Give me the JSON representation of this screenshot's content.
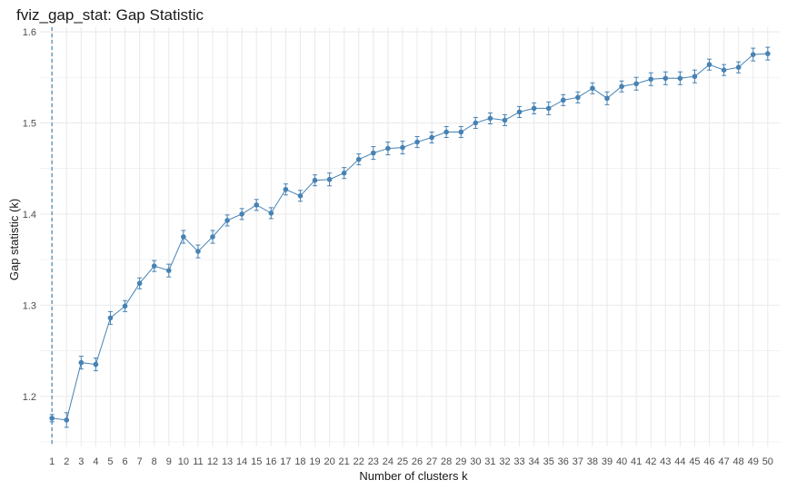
{
  "chart_data": {
    "type": "line",
    "title": "fviz_gap_stat: Gap Statistic",
    "xlabel": "Number of clusters k",
    "ylabel": "Gap statistic (k)",
    "ylim": [
      1.145,
      1.605
    ],
    "y_ticks": [
      1.2,
      1.3,
      1.4,
      1.5,
      1.6
    ],
    "y_tick_labels": [
      "1.2",
      "1.3",
      "1.4",
      "1.5",
      "1.6"
    ],
    "x": [
      1,
      2,
      3,
      4,
      5,
      6,
      7,
      8,
      9,
      10,
      11,
      12,
      13,
      14,
      15,
      16,
      17,
      18,
      19,
      20,
      21,
      22,
      23,
      24,
      25,
      26,
      27,
      28,
      29,
      30,
      31,
      32,
      33,
      34,
      35,
      36,
      37,
      38,
      39,
      40,
      41,
      42,
      43,
      44,
      45,
      46,
      47,
      48,
      49,
      50
    ],
    "x_tick_labels": [
      "1",
      "2",
      "3",
      "4",
      "5",
      "6",
      "7",
      "8",
      "9",
      "10",
      "11",
      "12",
      "13",
      "14",
      "15",
      "16",
      "17",
      "18",
      "19",
      "20",
      "21",
      "22",
      "23",
      "24",
      "25",
      "26",
      "27",
      "28",
      "29",
      "30",
      "31",
      "32",
      "33",
      "34",
      "35",
      "36",
      "37",
      "38",
      "39",
      "40",
      "41",
      "42",
      "43",
      "44",
      "45",
      "46",
      "47",
      "48",
      "49",
      "50"
    ],
    "series": [
      {
        "values": [
          1.176,
          1.174,
          1.237,
          1.235,
          1.286,
          1.299,
          1.324,
          1.343,
          1.338,
          1.375,
          1.359,
          1.375,
          1.393,
          1.4,
          1.41,
          1.401,
          1.427,
          1.42,
          1.437,
          1.438,
          1.445,
          1.46,
          1.467,
          1.472,
          1.473,
          1.479,
          1.484,
          1.49,
          1.49,
          1.5,
          1.505,
          1.503,
          1.512,
          1.516,
          1.516,
          1.525,
          1.528,
          1.538,
          1.527,
          1.54,
          1.543,
          1.548,
          1.549,
          1.549,
          1.551,
          1.564,
          1.558,
          1.561,
          1.575,
          1.576
        ],
        "errors": [
          0.004,
          0.008,
          0.007,
          0.007,
          0.007,
          0.006,
          0.006,
          0.006,
          0.007,
          0.007,
          0.007,
          0.007,
          0.006,
          0.006,
          0.006,
          0.006,
          0.006,
          0.006,
          0.006,
          0.007,
          0.006,
          0.006,
          0.007,
          0.007,
          0.007,
          0.006,
          0.006,
          0.006,
          0.006,
          0.006,
          0.006,
          0.006,
          0.006,
          0.006,
          0.007,
          0.006,
          0.006,
          0.006,
          0.007,
          0.006,
          0.007,
          0.007,
          0.007,
          0.007,
          0.007,
          0.006,
          0.006,
          0.006,
          0.007,
          0.007
        ],
        "color": "#4682B4"
      }
    ],
    "optimal_k": 1,
    "optimal_line_color": "#4682B4",
    "grid": true,
    "grid_color": "#ebebeb"
  }
}
